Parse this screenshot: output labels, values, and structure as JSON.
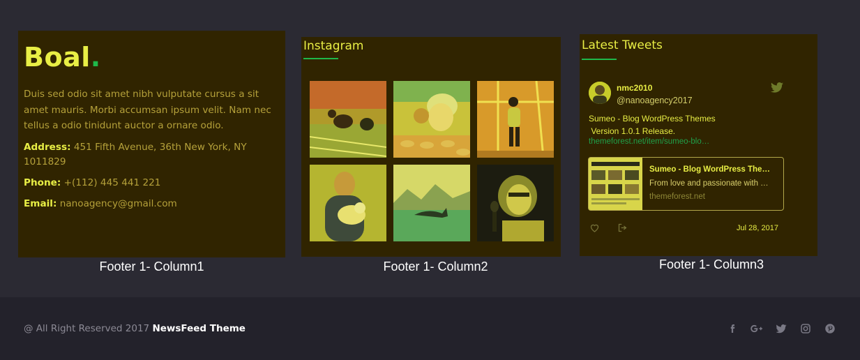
{
  "column1": {
    "brand": "Boal",
    "brand_dot": ".",
    "about": "Duis sed odio sit amet nibh vulputate cursus a sit amet mauris. Morbi accumsan ipsum velit. Nam nec tellus a odio tinidunt auctor a ornare odio.",
    "address_label": "Address:",
    "address_value": "451 Fifth Avenue, 36th New York, NY 1011829",
    "phone_label": "Phone:",
    "phone_value": "+(112) 445 441 221",
    "email_label": "Email:",
    "email_value": "nanoagency@gmail.com",
    "caption": "Footer 1- Column1"
  },
  "column2": {
    "title": "Instagram",
    "caption": "Footer 1- Column2",
    "photos": [
      "sprinters-at-start-photo",
      "chef-with-cookies-photo",
      "athlete-on-track-photo",
      "man-holding-puppy-photo",
      "whale-tail-lake-photo",
      "woman-with-microphone-photo"
    ]
  },
  "column3": {
    "title": "Latest Tweets",
    "caption": "Footer 1- Column3",
    "tweet": {
      "name": "nmc2010",
      "handle": "@nanoagency2017",
      "text": "Sumeo - Blog WordPress Themes\n Version 1.0.1 Release.",
      "link": "themeforest.net/item/sumeo-blo…",
      "card_title": "Sumeo - Blog WordPress The…",
      "card_desc": "From love and passionate with …",
      "card_domain": "themeforest.net",
      "date": "Jul 28, 2017"
    }
  },
  "bottom_bar": {
    "copyright": "@ All Right Reserved 2017",
    "theme_name": "NewsFeed Theme",
    "social_icons": [
      "facebook-icon",
      "google-plus-icon",
      "twitter-icon",
      "instagram-icon",
      "pinterest-icon"
    ]
  },
  "colors": {
    "page_bg": "#2b2a33",
    "panel_bg": "#302400",
    "accent_yellow": "#e8ee45",
    "accent_green": "#1fb84a",
    "footer_bg": "#23222b"
  }
}
